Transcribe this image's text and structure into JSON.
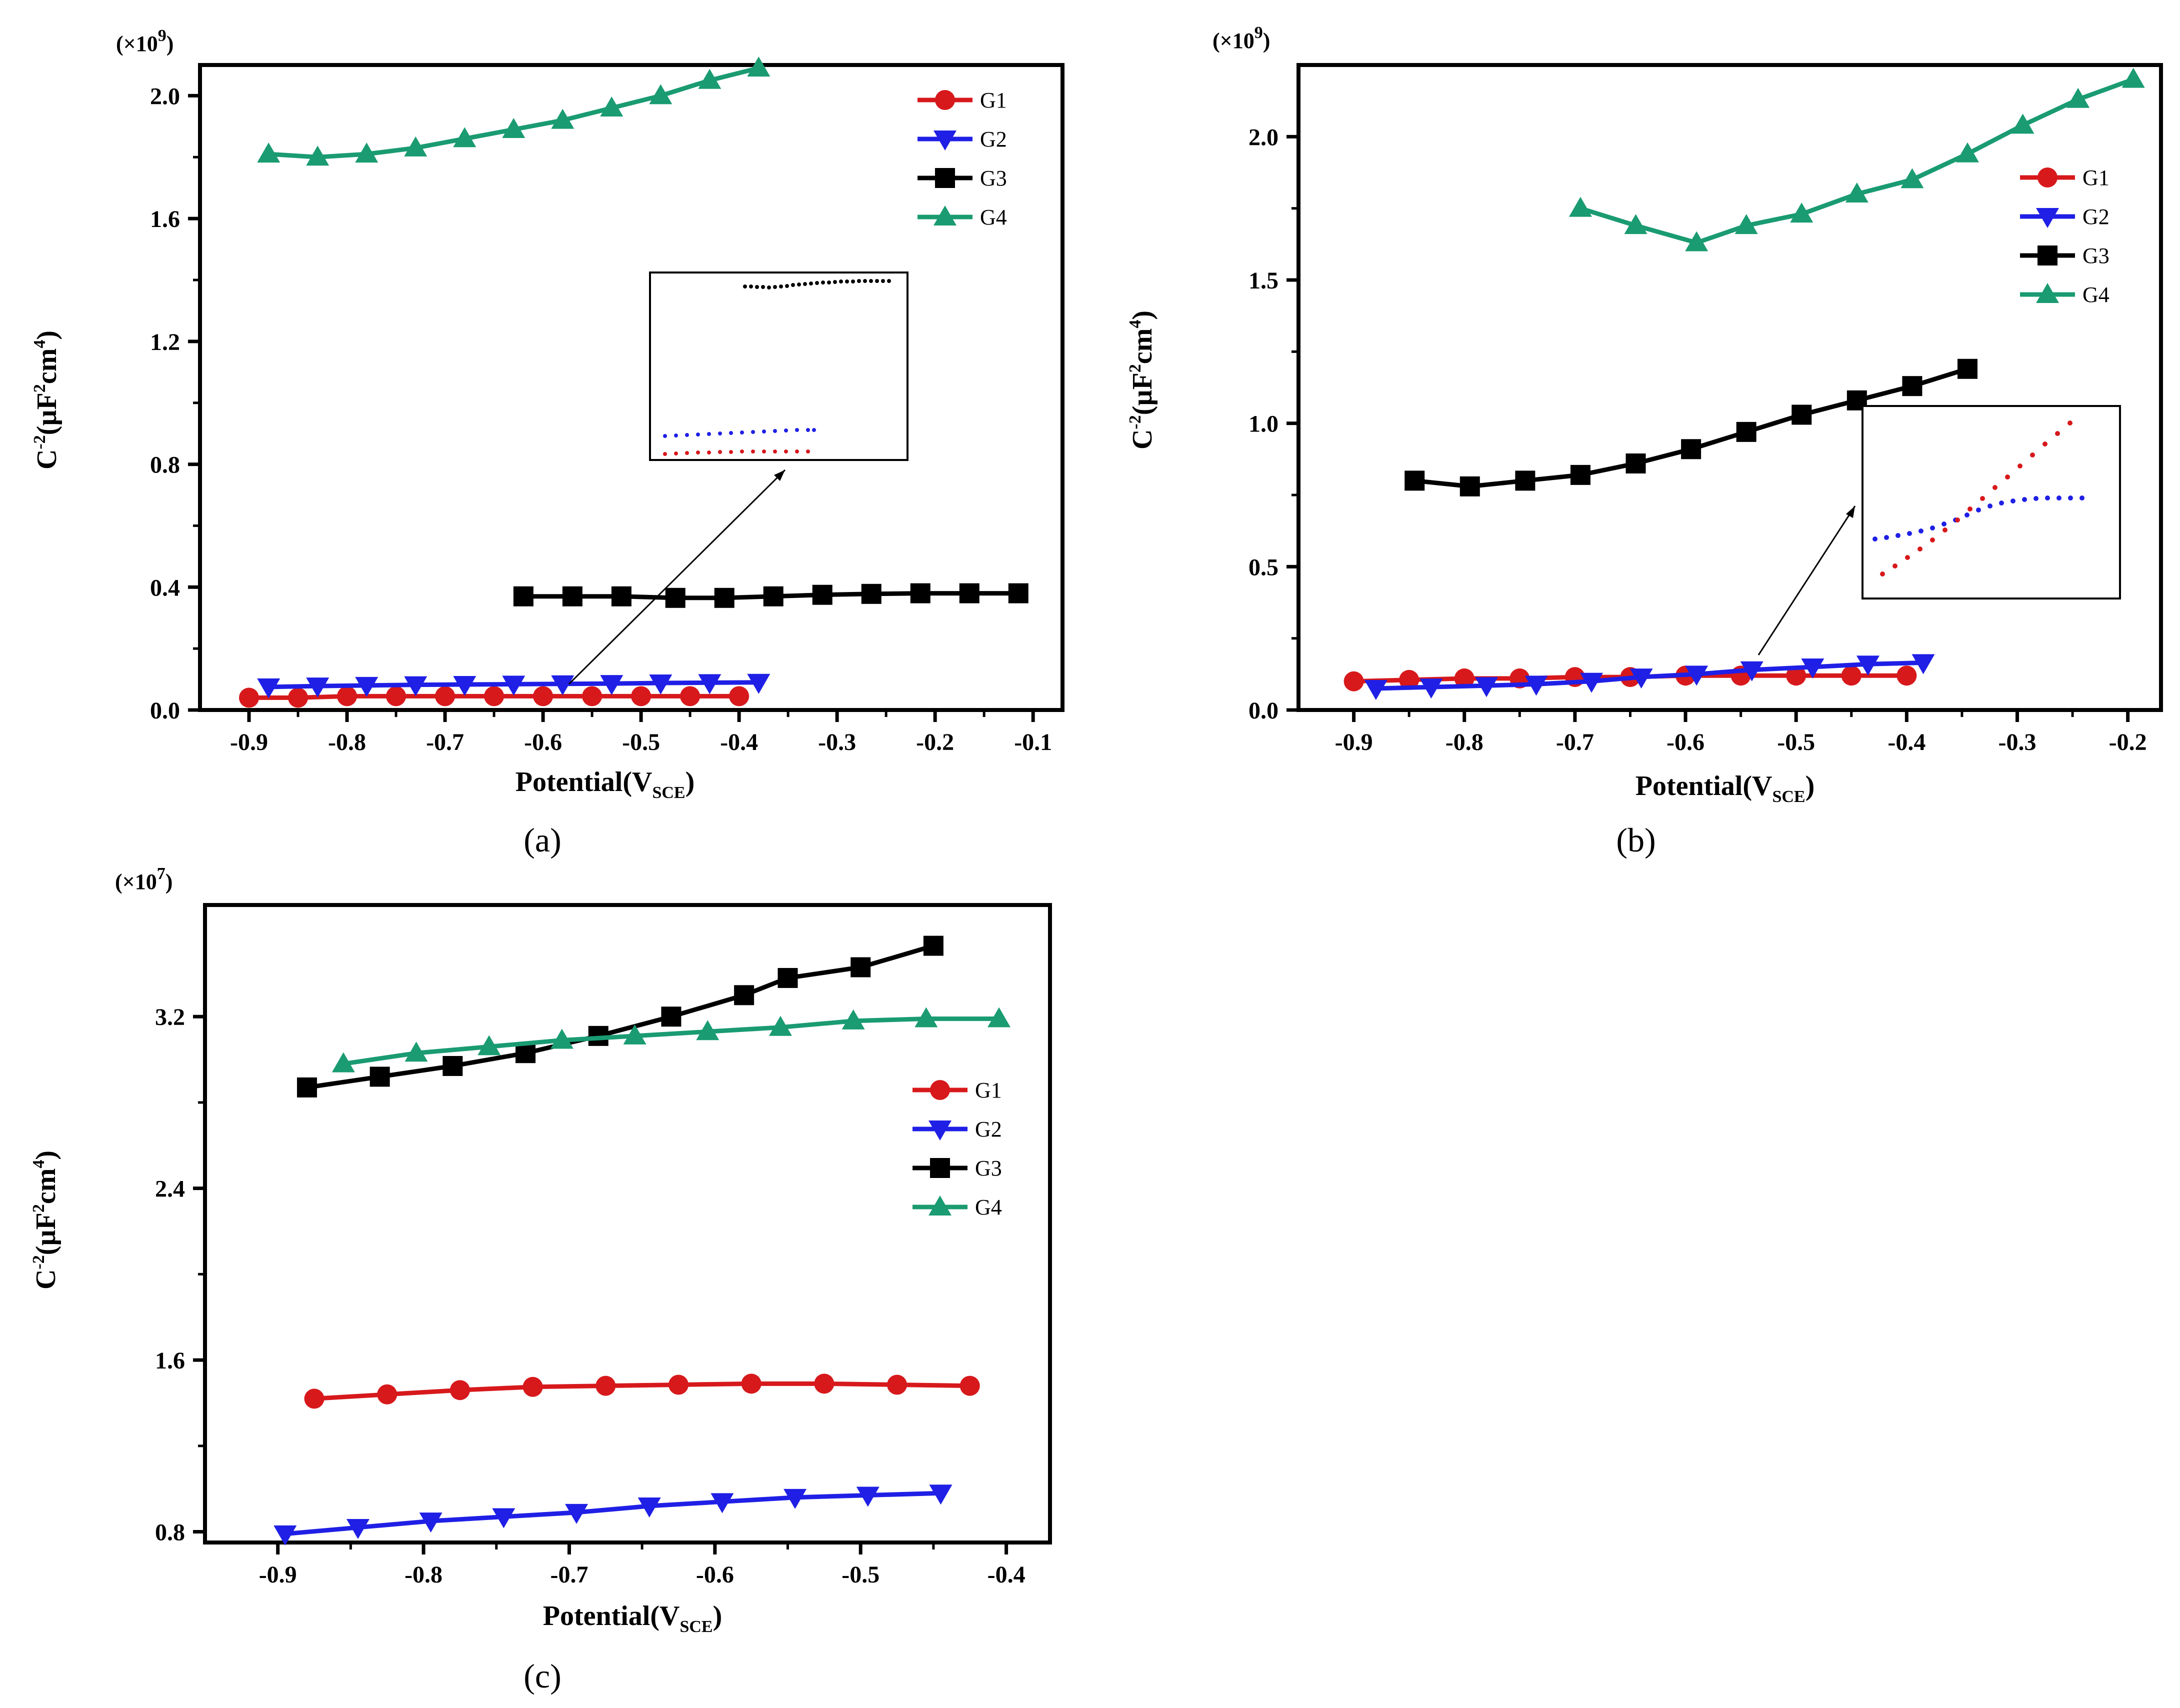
{
  "figure": {
    "colors": {
      "G1": "#d7191c",
      "G2": "#1f1fe6",
      "G3": "#000000",
      "G4": "#1a9b72"
    },
    "panels": [
      "(a)",
      "(b)",
      "(c)"
    ]
  },
  "chart_data": [
    {
      "type": "line",
      "panel_label": "(a)",
      "multiplier": "(×10",
      "multiplier_exp": "9",
      "multiplier_close": ")",
      "xlabel": "Potential(V",
      "xlabel_sub": "SCE",
      "xlabel_close": ")",
      "ylabel": "C",
      "ylabel_sup": "-2",
      "ylabel_rest": "(µF",
      "ylabel_sup2": "2",
      "ylabel_rest2": "cm",
      "ylabel_sup3": "4",
      "ylabel_close": ")",
      "xlim": [
        -0.95,
        -0.07
      ],
      "ylim": [
        0.0,
        2.1
      ],
      "xticks": [
        -0.9,
        -0.8,
        -0.7,
        -0.6,
        -0.5,
        -0.4,
        -0.3,
        -0.2,
        -0.1
      ],
      "xtick_labels": [
        "-0.9",
        "-0.8",
        "-0.7",
        "-0.6",
        "-0.5",
        "-0.4",
        "-0.3",
        "-0.2",
        "-0.1"
      ],
      "yticks": [
        0.0,
        0.4,
        0.8,
        1.2,
        1.6,
        2.0
      ],
      "ytick_labels": [
        "0.0",
        "0.4",
        "0.8",
        "1.2",
        "1.6",
        "2.0"
      ],
      "legend": "top-right",
      "series": [
        {
          "name": "G1",
          "marker": "circle",
          "x": [
            -0.9,
            -0.85,
            -0.8,
            -0.75,
            -0.7,
            -0.65,
            -0.6,
            -0.55,
            -0.5,
            -0.45,
            -0.4
          ],
          "y": [
            0.04,
            0.04,
            0.045,
            0.045,
            0.045,
            0.045,
            0.045,
            0.045,
            0.045,
            0.045,
            0.045
          ]
        },
        {
          "name": "G2",
          "marker": "triangle-down",
          "x": [
            -0.88,
            -0.83,
            -0.78,
            -0.73,
            -0.68,
            -0.63,
            -0.58,
            -0.53,
            -0.48,
            -0.43,
            -0.38
          ],
          "y": [
            0.075,
            0.078,
            0.08,
            0.082,
            0.083,
            0.084,
            0.085,
            0.086,
            0.088,
            0.089,
            0.09
          ]
        },
        {
          "name": "G3",
          "marker": "square",
          "x": [
            -0.62,
            -0.57,
            -0.52,
            -0.465,
            -0.415,
            -0.365,
            -0.315,
            -0.265,
            -0.215,
            -0.165,
            -0.115
          ],
          "y": [
            0.37,
            0.37,
            0.37,
            0.365,
            0.365,
            0.37,
            0.375,
            0.378,
            0.38,
            0.38,
            0.38
          ]
        },
        {
          "name": "G4",
          "marker": "triangle-up",
          "x": [
            -0.88,
            -0.83,
            -0.78,
            -0.73,
            -0.68,
            -0.63,
            -0.58,
            -0.53,
            -0.48,
            -0.43,
            -0.38
          ],
          "y": [
            1.81,
            1.8,
            1.81,
            1.83,
            1.86,
            1.89,
            1.92,
            1.96,
            2.0,
            2.05,
            2.09
          ]
        }
      ],
      "inset_note": "zoomed view of G1, G2 and G3"
    },
    {
      "type": "line",
      "panel_label": "(b)",
      "multiplier": "(×10",
      "multiplier_exp": "9",
      "multiplier_close": ")",
      "xlabel": "Potential(V",
      "xlabel_sub": "SCE",
      "xlabel_close": ")",
      "ylabel": "C",
      "ylabel_sup": "-2",
      "ylabel_rest": "(µF",
      "ylabel_sup2": "2",
      "ylabel_rest2": "cm",
      "ylabel_sup3": "4",
      "ylabel_close": ")",
      "xlim": [
        -0.95,
        -0.17
      ],
      "ylim": [
        0.0,
        2.25
      ],
      "xticks": [
        -0.9,
        -0.8,
        -0.7,
        -0.6,
        -0.5,
        -0.4,
        -0.3,
        -0.2
      ],
      "xtick_labels": [
        "-0.9",
        "-0.8",
        "-0.7",
        "-0.6",
        "-0.5",
        "-0.4",
        "-0.3",
        "-0.2"
      ],
      "yticks": [
        0.0,
        0.5,
        1.0,
        1.5,
        2.0
      ],
      "ytick_labels": [
        "0.0",
        "0.5",
        "1.0",
        "1.5",
        "2.0"
      ],
      "legend": "top-right",
      "series": [
        {
          "name": "G1",
          "marker": "circle",
          "x": [
            -0.9,
            -0.85,
            -0.8,
            -0.75,
            -0.7,
            -0.65,
            -0.6,
            -0.55,
            -0.5,
            -0.45,
            -0.4
          ],
          "y": [
            0.1,
            0.105,
            0.11,
            0.11,
            0.115,
            0.115,
            0.12,
            0.12,
            0.12,
            0.12,
            0.12
          ]
        },
        {
          "name": "G2",
          "marker": "triangle-down",
          "x": [
            -0.88,
            -0.83,
            -0.78,
            -0.735,
            -0.685,
            -0.64,
            -0.59,
            -0.54,
            -0.485,
            -0.435,
            -0.385
          ],
          "y": [
            0.075,
            0.08,
            0.085,
            0.09,
            0.1,
            0.115,
            0.125,
            0.14,
            0.15,
            0.16,
            0.165
          ]
        },
        {
          "name": "G3",
          "marker": "square",
          "x": [
            -0.845,
            -0.795,
            -0.745,
            -0.695,
            -0.645,
            -0.595,
            -0.545,
            -0.495,
            -0.445,
            -0.395,
            -0.345
          ],
          "y": [
            0.8,
            0.78,
            0.8,
            0.82,
            0.86,
            0.91,
            0.97,
            1.03,
            1.08,
            1.13,
            1.19
          ]
        },
        {
          "name": "G4",
          "marker": "triangle-up",
          "x": [
            -0.695,
            -0.645,
            -0.59,
            -0.545,
            -0.495,
            -0.445,
            -0.395,
            -0.345,
            -0.295,
            -0.245,
            -0.195
          ],
          "y": [
            1.75,
            1.69,
            1.63,
            1.69,
            1.73,
            1.8,
            1.85,
            1.94,
            2.04,
            2.13,
            2.2
          ]
        }
      ],
      "inset_note": "zoomed view of G1 and G2"
    },
    {
      "type": "line",
      "panel_label": "(c)",
      "multiplier": "(×10",
      "multiplier_exp": "7",
      "multiplier_close": ")",
      "xlabel": "Potential(V",
      "xlabel_sub": "SCE",
      "xlabel_close": ")",
      "ylabel": "C",
      "ylabel_sup": "-2",
      "ylabel_rest": "(µF",
      "ylabel_sup2": "2",
      "ylabel_rest2": "cm",
      "ylabel_sup3": "4",
      "ylabel_close": ")",
      "xlim": [
        -0.95,
        -0.37
      ],
      "ylim": [
        0.75,
        3.72
      ],
      "xticks": [
        -0.9,
        -0.8,
        -0.7,
        -0.6,
        -0.5,
        -0.4
      ],
      "xtick_labels": [
        "-0.9",
        "-0.8",
        "-0.7",
        "-0.6",
        "-0.5",
        "-0.4"
      ],
      "yticks": [
        0.8,
        1.6,
        2.4,
        3.2
      ],
      "ytick_labels": [
        "0.8",
        "1.6",
        "2.4",
        "3.2"
      ],
      "legend": "center-right",
      "series": [
        {
          "name": "G1",
          "marker": "circle",
          "x": [
            -0.875,
            -0.825,
            -0.775,
            -0.725,
            -0.675,
            -0.625,
            -0.575,
            -0.525,
            -0.475,
            -0.425
          ],
          "y": [
            1.42,
            1.44,
            1.46,
            1.475,
            1.48,
            1.485,
            1.49,
            1.49,
            1.485,
            1.48
          ]
        },
        {
          "name": "G2",
          "marker": "triangle-down",
          "x": [
            -0.895,
            -0.845,
            -0.795,
            -0.745,
            -0.695,
            -0.645,
            -0.595,
            -0.545,
            -0.495,
            -0.445
          ],
          "y": [
            0.79,
            0.82,
            0.85,
            0.87,
            0.89,
            0.92,
            0.94,
            0.96,
            0.97,
            0.98
          ]
        },
        {
          "name": "G3",
          "marker": "square",
          "x": [
            -0.88,
            -0.83,
            -0.78,
            -0.73,
            -0.68,
            -0.63,
            -0.58,
            -0.55,
            -0.5,
            -0.45
          ],
          "y": [
            2.87,
            2.92,
            2.97,
            3.03,
            3.11,
            3.2,
            3.3,
            3.38,
            3.43,
            3.53
          ]
        },
        {
          "name": "G4",
          "marker": "triangle-up",
          "x": [
            -0.855,
            -0.805,
            -0.755,
            -0.705,
            -0.655,
            -0.605,
            -0.555,
            -0.505,
            -0.455,
            -0.405
          ],
          "y": [
            2.98,
            3.03,
            3.06,
            3.09,
            3.11,
            3.13,
            3.15,
            3.18,
            3.19,
            3.19
          ]
        }
      ]
    }
  ]
}
